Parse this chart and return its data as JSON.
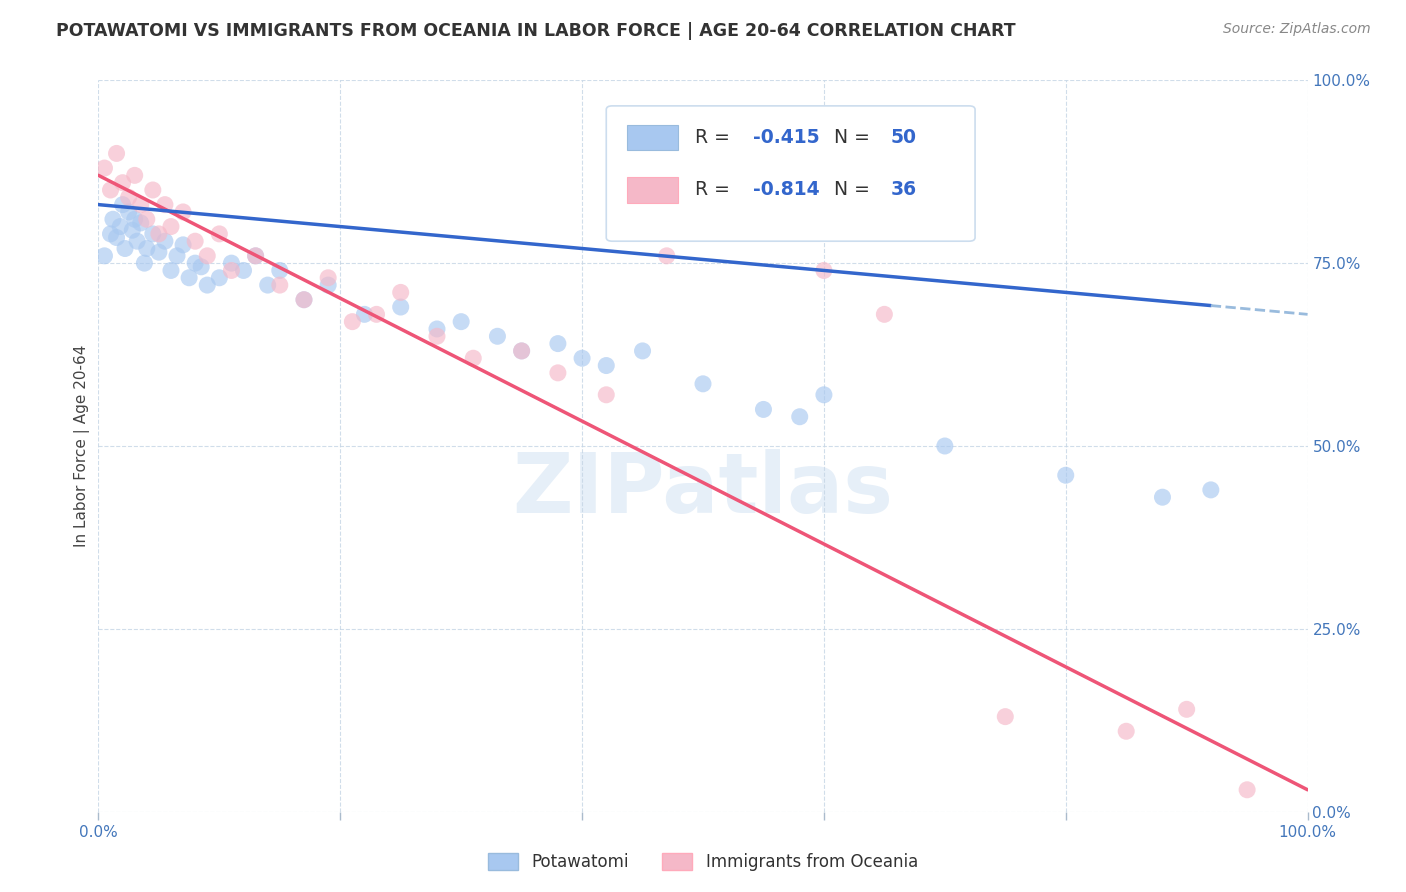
{
  "title": "POTAWATOMI VS IMMIGRANTS FROM OCEANIA IN LABOR FORCE | AGE 20-64 CORRELATION CHART",
  "source": "Source: ZipAtlas.com",
  "ylabel": "In Labor Force | Age 20-64",
  "xlim": [
    0,
    100
  ],
  "ylim": [
    0,
    100
  ],
  "blue_r": "-0.415",
  "blue_n": "50",
  "pink_r": "-0.814",
  "pink_n": "36",
  "blue_color": "#A8C8F0",
  "pink_color": "#F5B8C8",
  "blue_line_color": "#3366CC",
  "pink_line_color": "#EE5577",
  "dashed_line_color": "#99BBDD",
  "legend_label_blue": "Potawatomi",
  "legend_label_pink": "Immigrants from Oceania",
  "watermark": "ZIPatlas",
  "blue_points_x": [
    0.5,
    1.0,
    1.2,
    1.5,
    1.8,
    2.0,
    2.2,
    2.5,
    2.8,
    3.0,
    3.2,
    3.5,
    3.8,
    4.0,
    4.5,
    5.0,
    5.5,
    6.0,
    6.5,
    7.0,
    7.5,
    8.0,
    8.5,
    9.0,
    10.0,
    11.0,
    12.0,
    13.0,
    14.0,
    15.0,
    17.0,
    19.0,
    22.0,
    25.0,
    28.0,
    30.0,
    33.0,
    35.0,
    38.0,
    40.0,
    42.0,
    45.0,
    50.0,
    55.0,
    58.0,
    60.0,
    70.0,
    80.0,
    88.0,
    92.0
  ],
  "blue_points_y": [
    76.0,
    79.0,
    81.0,
    78.5,
    80.0,
    83.0,
    77.0,
    82.0,
    79.5,
    81.0,
    78.0,
    80.5,
    75.0,
    77.0,
    79.0,
    76.5,
    78.0,
    74.0,
    76.0,
    77.5,
    73.0,
    75.0,
    74.5,
    72.0,
    73.0,
    75.0,
    74.0,
    76.0,
    72.0,
    74.0,
    70.0,
    72.0,
    68.0,
    69.0,
    66.0,
    67.0,
    65.0,
    63.0,
    64.0,
    62.0,
    61.0,
    63.0,
    58.5,
    55.0,
    54.0,
    57.0,
    50.0,
    46.0,
    43.0,
    44.0
  ],
  "pink_points_x": [
    0.5,
    1.0,
    1.5,
    2.0,
    2.5,
    3.0,
    3.5,
    4.0,
    4.5,
    5.0,
    5.5,
    6.0,
    7.0,
    8.0,
    9.0,
    10.0,
    11.0,
    13.0,
    15.0,
    17.0,
    19.0,
    21.0,
    23.0,
    25.0,
    28.0,
    31.0,
    35.0,
    38.0,
    42.0,
    47.0,
    60.0,
    65.0,
    75.0,
    85.0,
    90.0,
    95.0
  ],
  "pink_points_y": [
    88.0,
    85.0,
    90.0,
    86.0,
    84.0,
    87.0,
    83.0,
    81.0,
    85.0,
    79.0,
    83.0,
    80.0,
    82.0,
    78.0,
    76.0,
    79.0,
    74.0,
    76.0,
    72.0,
    70.0,
    73.0,
    67.0,
    68.0,
    71.0,
    65.0,
    62.0,
    63.0,
    60.0,
    57.0,
    76.0,
    74.0,
    68.0,
    13.0,
    11.0,
    14.0,
    3.0
  ],
  "blue_trend_start_x": 0,
  "blue_trend_end_x": 100,
  "blue_trend_start_y": 83.0,
  "blue_trend_end_y": 68.0,
  "pink_trend_start_x": 0,
  "pink_trend_end_x": 100,
  "pink_trend_start_y": 87.0,
  "pink_trend_end_y": 3.0,
  "blue_solid_end_x": 92,
  "blue_dashed_start_x": 92,
  "xticks": [
    0,
    20,
    40,
    60,
    80,
    100
  ],
  "xticklabels": [
    "0.0%",
    "",
    "",
    "",
    "",
    "100.0%"
  ],
  "yticks": [
    0,
    25,
    50,
    75,
    100
  ],
  "right_yticklabels": [
    "0.0%",
    "25.0%",
    "50.0%",
    "75.0%",
    "100.0%"
  ]
}
